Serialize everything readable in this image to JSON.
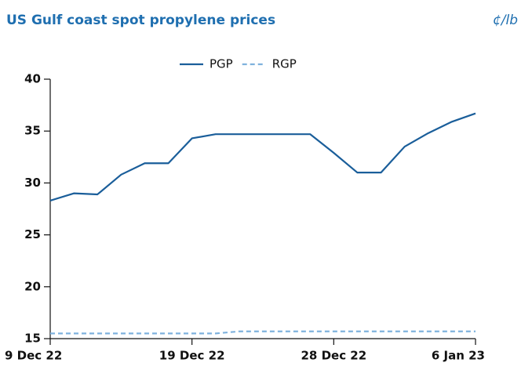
{
  "chart_data": {
    "type": "line",
    "title": "US Gulf coast spot propylene prices",
    "unit": "¢/lb",
    "categories": [
      "9 Dec 22",
      null,
      null,
      null,
      null,
      null,
      "19 Dec 22",
      null,
      null,
      null,
      null,
      null,
      "28 Dec 22",
      null,
      null,
      null,
      null,
      null,
      "6 Jan 23"
    ],
    "series": [
      {
        "name": "PGP",
        "color": "#1a5e9a",
        "dashed": false,
        "values": [
          28.3,
          29.0,
          28.9,
          30.8,
          31.9,
          31.9,
          34.3,
          34.7,
          34.7,
          34.7,
          34.7,
          34.7,
          32.9,
          31.0,
          31.0,
          33.5,
          34.8,
          35.9,
          36.7
        ]
      },
      {
        "name": "RGP",
        "color": "#7fb2dd",
        "dashed": true,
        "values": [
          15.5,
          15.5,
          15.5,
          15.5,
          15.5,
          15.5,
          15.5,
          15.5,
          15.7,
          15.7,
          15.7,
          15.7,
          15.7,
          15.7,
          15.7,
          15.7,
          15.7,
          15.7,
          15.7
        ]
      }
    ],
    "ylim": [
      15,
      40
    ],
    "yticks": [
      15,
      20,
      25,
      30,
      35,
      40
    ],
    "legend": "top"
  }
}
